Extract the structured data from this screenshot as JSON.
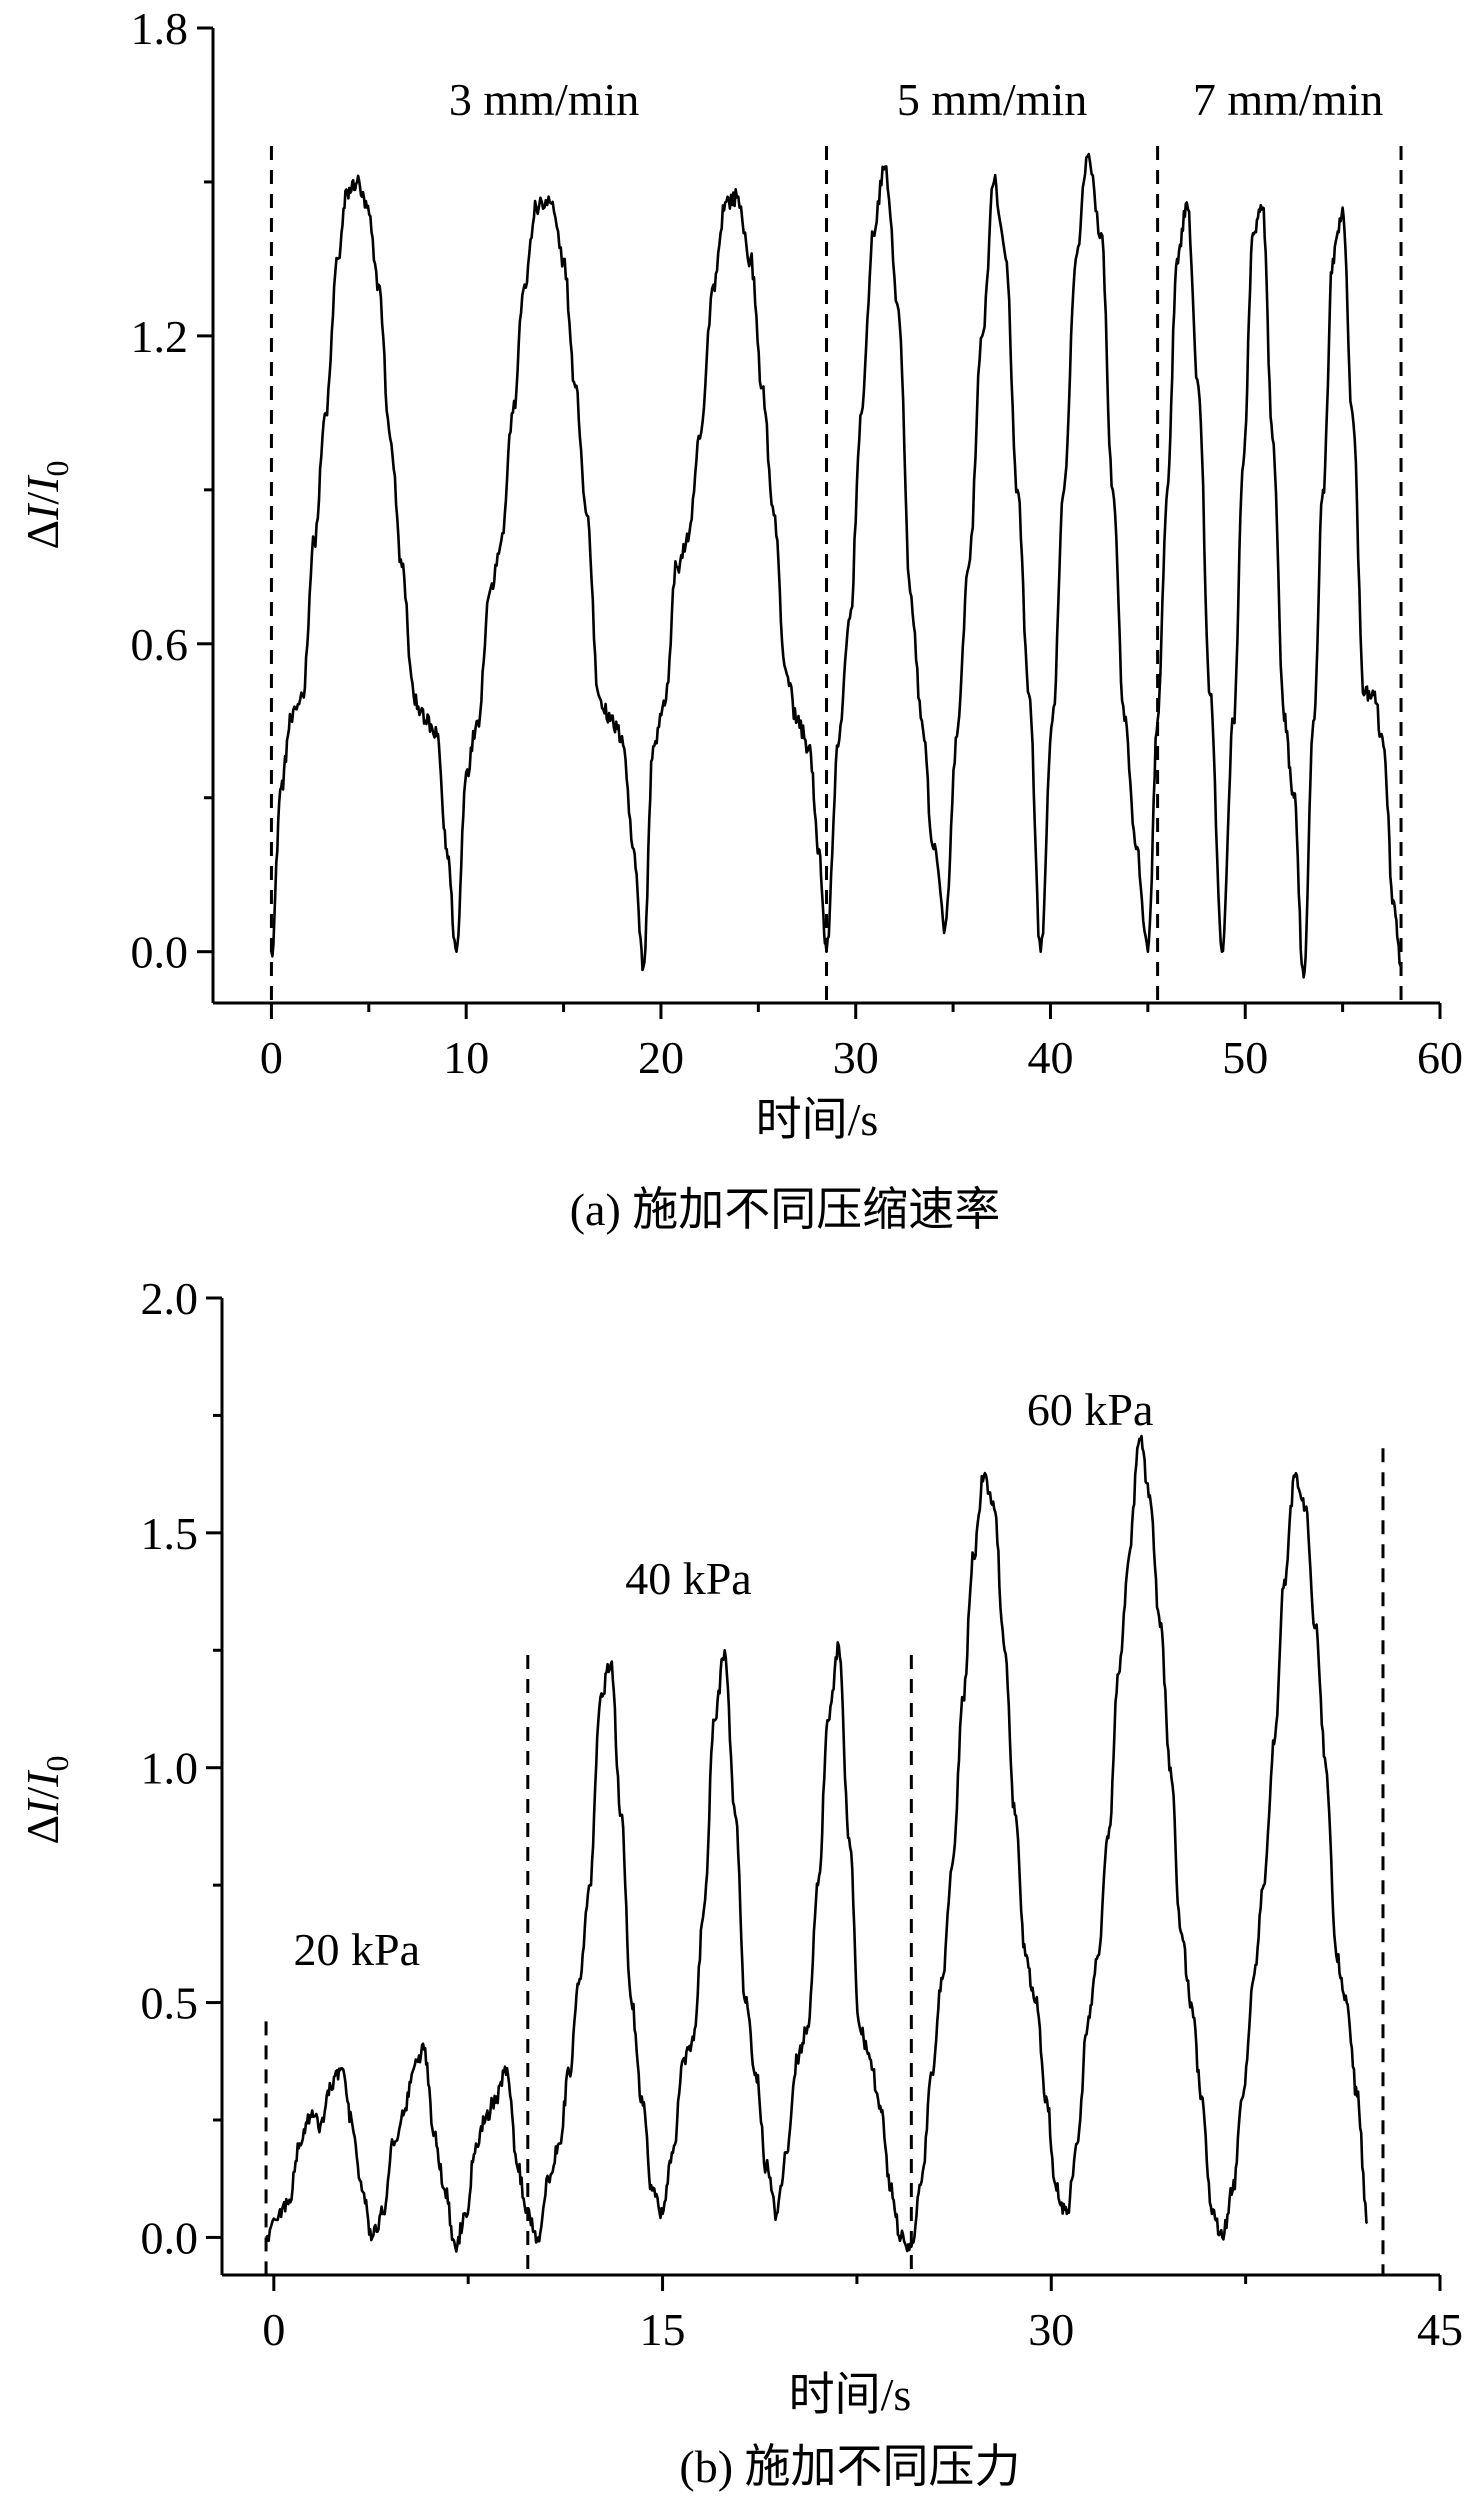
{
  "chart_data": [
    {
      "type": "line",
      "panel": "a",
      "caption": "(a) 施加不同压缩速率",
      "xlabel": "时间/s",
      "ylabel_prefix": "Δ",
      "ylabel_I": "I",
      "ylabel_slash": "/",
      "ylabel_I0": "I",
      "ylabel_sub": "0",
      "xlim": [
        -3,
        60
      ],
      "ylim": [
        -0.1,
        1.8
      ],
      "xticks": [
        0,
        10,
        20,
        30,
        40,
        50,
        60
      ],
      "xtick_labels": [
        "0",
        "10",
        "20",
        "30",
        "40",
        "50",
        "60"
      ],
      "yticks": [
        0.0,
        0.6,
        1.2,
        1.8
      ],
      "ytick_labels": [
        "0.0",
        "0.6",
        "1.2",
        "1.8"
      ],
      "minor_xticks": [
        5,
        15,
        25,
        35,
        45,
        55
      ],
      "minor_yticks": [
        0.3,
        0.9,
        1.5
      ],
      "grid": false,
      "annotations": [
        {
          "text": "3 mm/min",
          "x": 14,
          "y": 1.63
        },
        {
          "text": "5 mm/min",
          "x": 37,
          "y": 1.63
        },
        {
          "text": "7 mm/min",
          "x": 52.2,
          "y": 1.63
        }
      ],
      "dividers": [
        {
          "x": 0,
          "y_top": 1.57
        },
        {
          "x": 28.5,
          "y_top": 1.57
        },
        {
          "x": 45.5,
          "y_top": 1.57
        },
        {
          "x": 58,
          "y_top": 1.57
        }
      ],
      "series": [
        {
          "x": [
            0,
            0.5,
            1.0,
            1.6,
            2.2,
            2.8,
            3.4,
            3.9,
            4.4,
            4.9,
            5.5,
            6.1,
            6.7,
            7.3,
            7.9,
            8.5,
            9.0,
            9.5,
            10.0,
            10.6,
            11.2,
            11.8,
            12.4,
            13.0,
            13.6,
            14.3,
            15.0,
            15.6,
            16.2,
            16.8,
            17.4,
            18.0,
            18.6,
            19.1,
            19.6,
            20.2,
            20.8,
            21.4,
            22.0,
            22.7,
            23.3,
            23.9,
            24.6,
            25.2,
            25.8,
            26.4,
            27.0,
            27.6,
            28.1,
            28.5,
            29.1,
            29.7,
            30.3,
            30.9,
            31.5,
            32.2,
            32.8,
            33.4,
            34.0,
            34.6,
            35.2,
            35.8,
            36.5,
            37.1,
            37.7,
            38.3,
            38.9,
            39.5,
            40.1,
            40.7,
            41.3,
            41.9,
            42.6,
            43.2,
            43.8,
            44.4,
            45.0,
            45.5,
            46.0,
            46.5,
            47.0,
            47.6,
            48.2,
            48.8,
            49.4,
            49.9,
            50.4,
            50.9,
            51.4,
            52.0,
            52.5,
            53.0,
            53.5,
            54.0,
            54.5,
            55.0,
            55.5,
            56.1,
            56.6,
            57.1,
            57.6,
            58.0
          ],
          "y": [
            0.0,
            0.32,
            0.45,
            0.5,
            0.8,
            1.05,
            1.35,
            1.48,
            1.5,
            1.45,
            1.3,
            1.0,
            0.75,
            0.5,
            0.45,
            0.42,
            0.2,
            0.0,
            0.35,
            0.45,
            0.7,
            0.8,
            1.05,
            1.3,
            1.45,
            1.46,
            1.35,
            1.1,
            0.85,
            0.5,
            0.45,
            0.42,
            0.2,
            -0.03,
            0.4,
            0.48,
            0.75,
            0.8,
            1.0,
            1.3,
            1.46,
            1.47,
            1.35,
            1.1,
            0.85,
            0.55,
            0.45,
            0.4,
            0.2,
            0.0,
            0.4,
            0.65,
            1.05,
            1.4,
            1.53,
            1.25,
            0.7,
            0.45,
            0.2,
            0.05,
            0.42,
            0.75,
            1.2,
            1.5,
            1.35,
            0.9,
            0.5,
            0.0,
            0.45,
            0.9,
            1.35,
            1.55,
            1.4,
            0.9,
            0.45,
            0.2,
            0.0,
            0.45,
            0.9,
            1.35,
            1.46,
            1.1,
            0.5,
            0.0,
            0.45,
            0.95,
            1.4,
            1.45,
            1.0,
            0.45,
            0.3,
            -0.05,
            0.45,
            0.9,
            1.35,
            1.45,
            1.05,
            0.5,
            0.5,
            0.4,
            0.1,
            -0.03
          ]
        }
      ]
    },
    {
      "type": "line",
      "panel": "b",
      "caption": "(b) 施加不同压力",
      "xlabel": "时间/s",
      "ylabel_prefix": "Δ",
      "ylabel_I": "I",
      "ylabel_slash": "/",
      "ylabel_I0": "I",
      "ylabel_sub": "0",
      "xlim": [
        -2,
        45
      ],
      "ylim": [
        -0.08,
        2.0
      ],
      "xticks": [
        0,
        15,
        30,
        45
      ],
      "xtick_labels": [
        "0",
        "15",
        "30",
        "45"
      ],
      "yticks": [
        0.0,
        0.5,
        1.0,
        1.5,
        2.0
      ],
      "ytick_labels": [
        "0.0",
        "0.5",
        "1.0",
        "1.5",
        "2.0"
      ],
      "minor_xticks": [
        7.5,
        22.5,
        37.5
      ],
      "minor_yticks": [
        0.25,
        0.75,
        1.25,
        1.75
      ],
      "grid": false,
      "annotations": [
        {
          "text": "20 kPa",
          "x": 3.2,
          "y": 0.58
        },
        {
          "text": "40 kPa",
          "x": 16,
          "y": 1.37
        },
        {
          "text": "60 kPa",
          "x": 31.5,
          "y": 1.73
        }
      ],
      "dividers": [
        {
          "x": -0.3,
          "y_top": 0.46
        },
        {
          "x": 9.8,
          "y_top": 1.24
        },
        {
          "x": 24.6,
          "y_top": 1.24
        },
        {
          "x": 42.8,
          "y_top": 1.68
        }
      ],
      "series": [
        {
          "x": [
            -0.3,
            0.2,
            0.6,
            1.0,
            1.4,
            1.8,
            2.2,
            2.6,
            3.0,
            3.4,
            3.8,
            4.2,
            4.6,
            5.0,
            5.4,
            5.8,
            6.2,
            6.6,
            7.0,
            7.4,
            7.8,
            8.2,
            8.6,
            9.0,
            9.4,
            9.8,
            10.2,
            10.6,
            11.0,
            11.4,
            11.8,
            12.2,
            12.6,
            13.0,
            13.4,
            13.8,
            14.2,
            14.6,
            15.0,
            15.4,
            15.8,
            16.2,
            16.6,
            17.0,
            17.4,
            17.8,
            18.2,
            18.6,
            19.0,
            19.4,
            19.8,
            20.2,
            20.6,
            21.0,
            21.4,
            21.8,
            22.2,
            22.6,
            23.0,
            23.4,
            23.8,
            24.2,
            24.6,
            25.0,
            25.4,
            25.8,
            26.2,
            26.6,
            27.0,
            27.4,
            27.8,
            28.2,
            28.6,
            29.0,
            29.4,
            29.8,
            30.2,
            30.6,
            31.0,
            31.4,
            31.8,
            32.2,
            32.6,
            33.0,
            33.4,
            33.8,
            34.2,
            34.6,
            35.0,
            35.4,
            35.8,
            36.2,
            36.6,
            37.0,
            37.4,
            37.8,
            38.2,
            38.6,
            39.0,
            39.4,
            39.8,
            40.2,
            40.6,
            41.0,
            41.4,
            41.8,
            42.2
          ],
          "y": [
            0.0,
            0.05,
            0.08,
            0.2,
            0.26,
            0.24,
            0.32,
            0.36,
            0.25,
            0.1,
            0.0,
            0.05,
            0.2,
            0.26,
            0.36,
            0.4,
            0.22,
            0.1,
            -0.02,
            0.05,
            0.2,
            0.26,
            0.3,
            0.36,
            0.15,
            0.05,
            0.0,
            0.12,
            0.2,
            0.35,
            0.55,
            0.75,
            1.15,
            1.22,
            0.9,
            0.5,
            0.3,
            0.1,
            0.05,
            0.18,
            0.38,
            0.42,
            0.7,
            1.1,
            1.25,
            0.9,
            0.5,
            0.35,
            0.15,
            0.05,
            0.18,
            0.38,
            0.45,
            0.75,
            1.1,
            1.26,
            0.85,
            0.45,
            0.38,
            0.28,
            0.1,
            0.0,
            -0.02,
            0.12,
            0.35,
            0.55,
            0.8,
            1.15,
            1.45,
            1.62,
            1.55,
            1.25,
            0.9,
            0.6,
            0.5,
            0.3,
            0.1,
            0.05,
            0.2,
            0.45,
            0.6,
            0.85,
            1.2,
            1.45,
            1.7,
            1.58,
            1.3,
            1.0,
            0.65,
            0.5,
            0.3,
            0.05,
            0.0,
            0.1,
            0.3,
            0.55,
            0.75,
            1.05,
            1.4,
            1.62,
            1.55,
            1.3,
            1.0,
            0.6,
            0.5,
            0.3,
            0.03
          ]
        }
      ]
    }
  ]
}
